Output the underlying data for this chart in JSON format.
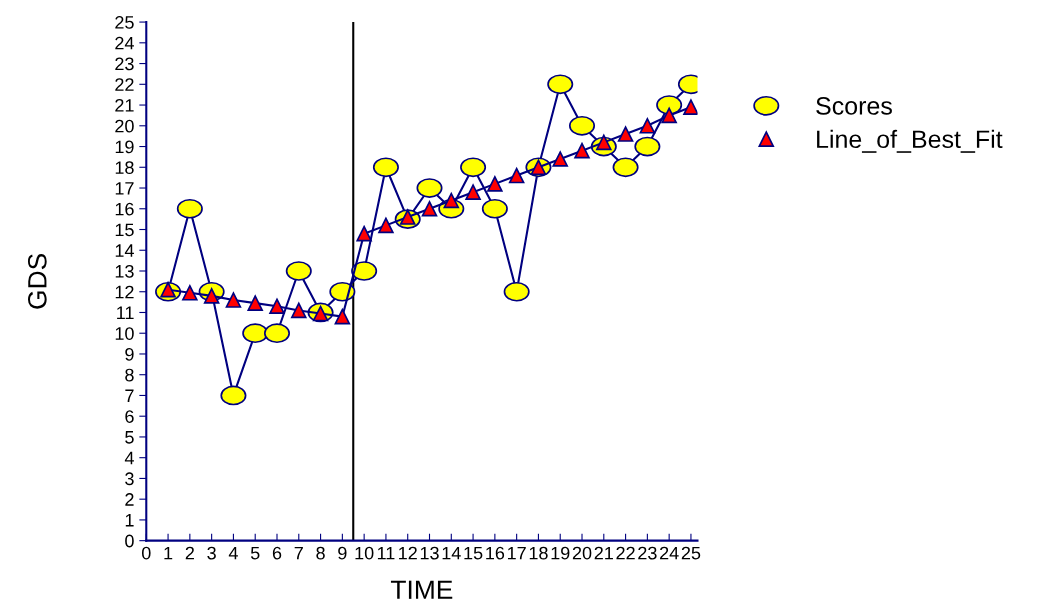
{
  "chart_data": {
    "type": "line",
    "xlabel": "TIME",
    "ylabel": "GDS",
    "x": [
      1,
      2,
      3,
      4,
      5,
      6,
      7,
      8,
      9,
      10,
      11,
      12,
      13,
      14,
      15,
      16,
      17,
      18,
      19,
      20,
      21,
      22,
      23,
      24,
      25
    ],
    "series": [
      {
        "name": "Scores",
        "color": "#ffff00",
        "marker": "circle",
        "values": [
          12,
          16,
          12,
          7,
          10,
          10,
          13,
          11,
          12,
          13,
          18,
          15.5,
          17,
          16,
          18,
          16,
          12,
          18,
          22,
          20,
          19,
          18,
          19,
          21,
          22
        ]
      },
      {
        "name": "Line_of_Best_Fit",
        "color": "#ff0000",
        "marker": "triangle",
        "values": [
          12.1,
          11.95,
          11.8,
          11.6,
          11.45,
          11.3,
          11.1,
          10.95,
          10.8,
          14.8,
          15.2,
          15.6,
          16.0,
          16.4,
          16.8,
          17.2,
          17.6,
          18.0,
          18.4,
          18.8,
          19.2,
          19.6,
          20.0,
          20.5,
          20.9
        ]
      }
    ],
    "xlim": [
      0,
      25.3
    ],
    "xticks": [
      0,
      1,
      2,
      3,
      4,
      5,
      6,
      7,
      8,
      9,
      10,
      11,
      12,
      13,
      14,
      15,
      16,
      17,
      18,
      19,
      20,
      21,
      22,
      23,
      24,
      25
    ],
    "ylim": [
      0,
      25
    ],
    "yticks": [
      0,
      1,
      2,
      3,
      4,
      5,
      6,
      7,
      8,
      9,
      10,
      11,
      12,
      13,
      14,
      15,
      16,
      17,
      18,
      19,
      20,
      21,
      22,
      23,
      24,
      25
    ],
    "ref_lines": [
      {
        "axis": "x",
        "value": 9.5,
        "color": "#000000"
      }
    ],
    "grid": false,
    "legend": "right"
  }
}
